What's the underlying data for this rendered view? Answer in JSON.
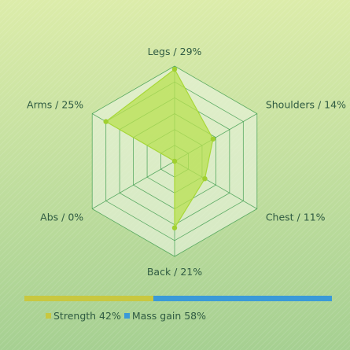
{
  "chart_data": {
    "type": "radar",
    "max": 30,
    "rings": 6,
    "axes": [
      {
        "name": "Legs",
        "value": 29,
        "label": "Legs / 29%"
      },
      {
        "name": "Shoulders",
        "value": 14,
        "label": "Shoulders / 14%"
      },
      {
        "name": "Chest",
        "value": 11,
        "label": "Chest / 11%"
      },
      {
        "name": "Back",
        "value": 21,
        "label": "Back / 21%"
      },
      {
        "name": "Abs",
        "value": 0,
        "label": "Abs / 0%"
      },
      {
        "name": "Arms",
        "value": 25,
        "label": "Arms / 25%"
      }
    ],
    "split": [
      {
        "name": "Strength",
        "value": 42,
        "label": "Strength 42%",
        "color": "#c8c840"
      },
      {
        "name": "Mass gain",
        "value": 58,
        "label": "Mass gain 58%",
        "color": "#3a9ad8"
      }
    ],
    "colors": {
      "grid_fill": "#e8f2dc",
      "grid_stroke": "#3a9a4a",
      "series_fill": "#b8e050",
      "series_stroke": "#a8d838",
      "point": "#a0d030",
      "text": "#2f5b42"
    }
  }
}
